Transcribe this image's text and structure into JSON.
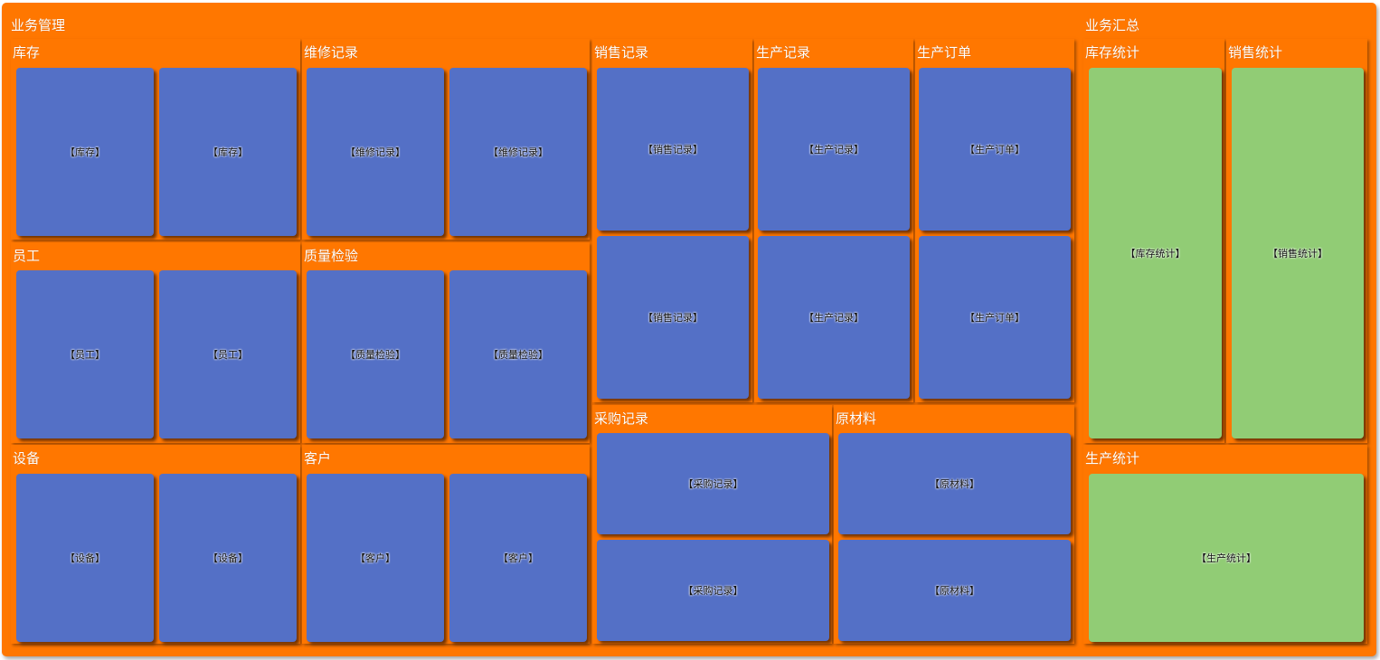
{
  "groups": [
    {
      "title": "业务管理",
      "sections": [
        {
          "title": "库存",
          "tiles": [
            "【库存】",
            "【库存】"
          ]
        },
        {
          "title": "维修记录",
          "tiles": [
            "【维修记录】",
            "【维修记录】"
          ]
        },
        {
          "title": "员工",
          "tiles": [
            "【员工】",
            "【员工】"
          ]
        },
        {
          "title": "质量检验",
          "tiles": [
            "【质量检验】",
            "【质量检验】"
          ]
        },
        {
          "title": "设备",
          "tiles": [
            "【设备】",
            "【设备】"
          ]
        },
        {
          "title": "客户",
          "tiles": [
            "【客户】",
            "【客户】"
          ]
        },
        {
          "title": "销售记录",
          "tiles": [
            "【销售记录】",
            "【销售记录】"
          ]
        },
        {
          "title": "生产记录",
          "tiles": [
            "【生产记录】",
            "【生产记录】"
          ]
        },
        {
          "title": "生产订单",
          "tiles": [
            "【生产订单】",
            "【生产订单】"
          ]
        },
        {
          "title": "采购记录",
          "tiles": [
            "【采购记录】",
            "【采购记录】"
          ]
        },
        {
          "title": "原材料",
          "tiles": [
            "【原材料】",
            "【原材料】"
          ]
        }
      ]
    },
    {
      "title": "业务汇总",
      "sections": [
        {
          "title": "库存统计",
          "tiles": [
            "【库存统计】"
          ]
        },
        {
          "title": "销售统计",
          "tiles": [
            "【销售统计】"
          ]
        },
        {
          "title": "生产统计",
          "tiles": [
            "【生产统计】"
          ]
        }
      ]
    }
  ]
}
